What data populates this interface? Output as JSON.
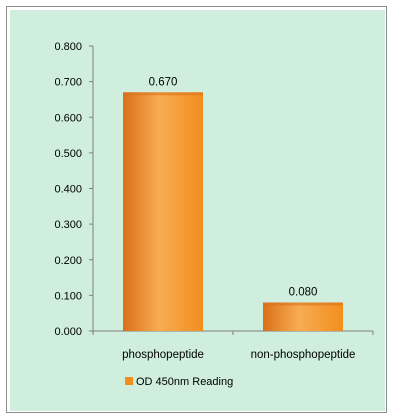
{
  "chart_data": {
    "type": "bar",
    "categories": [
      "phosphopeptide",
      "non-phosphopeptide"
    ],
    "series": [
      {
        "name": "OD 450nm Reading",
        "values": [
          0.67,
          0.08
        ],
        "data_labels": [
          "0.670",
          "0.080"
        ]
      }
    ],
    "title": "",
    "xlabel": "",
    "ylabel": "",
    "ylim": [
      0,
      0.8
    ],
    "yticks": [
      0.0,
      0.1,
      0.2,
      0.3,
      0.4,
      0.5,
      0.6,
      0.7,
      0.8
    ],
    "ytick_labels": [
      "0.000",
      "0.100",
      "0.200",
      "0.300",
      "0.400",
      "0.500",
      "0.600",
      "0.700",
      "0.800"
    ],
    "grid": false,
    "legend_position": "bottom",
    "colors": {
      "plot_background": "#cfeedd",
      "bar": "#f28e1e",
      "bar_light": "#f8ac52",
      "bar_dark": "#d9701a",
      "axis": "#808080"
    }
  }
}
